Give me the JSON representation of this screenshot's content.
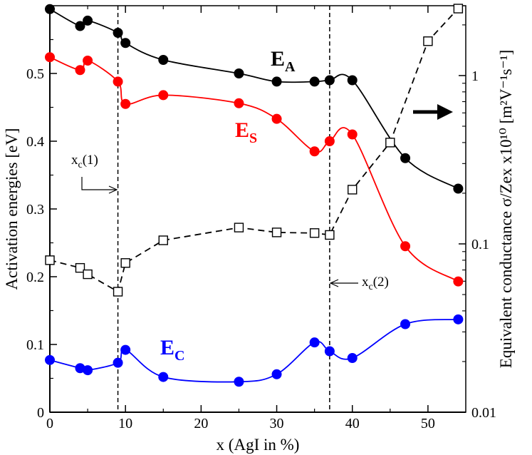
{
  "chart_data": {
    "type": "line",
    "x": [
      0,
      4,
      5,
      9,
      10,
      15,
      25,
      30,
      35,
      37,
      40,
      45,
      47,
      54
    ],
    "xlim": [
      0,
      55
    ],
    "ylim": [
      0,
      0.6
    ],
    "y2lim": [
      0.01,
      2.6
    ],
    "y2scale": "log",
    "x_ticks": [
      0,
      10,
      20,
      30,
      40,
      50
    ],
    "y_ticks": [
      0,
      0.1,
      0.2,
      0.3,
      0.4,
      0.5
    ],
    "y2_ticks": [
      0.01,
      0.1,
      1
    ],
    "xlabel": "x (AgI in %)",
    "ylabel": "Activation energies [eV]",
    "y2label": "Equivalent conductance σ/Zex x10¹⁰ [m²V⁻¹s⁻¹]",
    "colors": {
      "EA": "#000000",
      "ES": "#ff0000",
      "EC": "#0000ff",
      "conductance": "#000000"
    },
    "series": [
      {
        "key": "EA",
        "name": "E_A",
        "main": "E",
        "sub": "A",
        "axis": "left",
        "x": [
          0,
          4,
          5,
          9,
          10,
          15,
          25,
          30,
          35,
          37,
          40,
          47,
          54
        ],
        "values": [
          0.595,
          0.57,
          0.578,
          0.56,
          0.545,
          0.52,
          0.5,
          0.488,
          0.488,
          0.49,
          0.49,
          0.375,
          0.33
        ]
      },
      {
        "key": "ES",
        "name": "E_S",
        "main": "E",
        "sub": "S",
        "axis": "left",
        "x": [
          0,
          4,
          5,
          9,
          10,
          15,
          25,
          30,
          35,
          37,
          40,
          47,
          54
        ],
        "values": [
          0.524,
          0.505,
          0.519,
          0.488,
          0.455,
          0.468,
          0.456,
          0.433,
          0.385,
          0.4,
          0.41,
          0.245,
          0.193
        ]
      },
      {
        "key": "EC",
        "name": "E_C",
        "main": "E",
        "sub": "C",
        "axis": "left",
        "x": [
          0,
          4,
          5,
          9,
          10,
          15,
          25,
          30,
          35,
          37,
          40,
          47,
          54
        ],
        "values": [
          0.077,
          0.065,
          0.062,
          0.073,
          0.092,
          0.052,
          0.045,
          0.056,
          0.103,
          0.09,
          0.08,
          0.13,
          0.137
        ]
      },
      {
        "key": "conductance",
        "name": "Equivalent conductance",
        "axis": "right",
        "x": [
          0,
          4,
          5,
          9,
          10,
          15,
          25,
          30,
          35,
          37,
          40,
          45,
          50,
          54
        ],
        "values": [
          0.08,
          0.072,
          0.066,
          0.052,
          0.077,
          0.105,
          0.125,
          0.117,
          0.116,
          0.113,
          0.21,
          0.4,
          1.6,
          2.5
        ]
      }
    ],
    "annotations": {
      "xc1": {
        "main": "x",
        "sub": "c",
        "suffix": "(1)",
        "x": 9
      },
      "xc2": {
        "main": "x",
        "sub": "c",
        "suffix": "(2)",
        "x": 37
      }
    }
  }
}
